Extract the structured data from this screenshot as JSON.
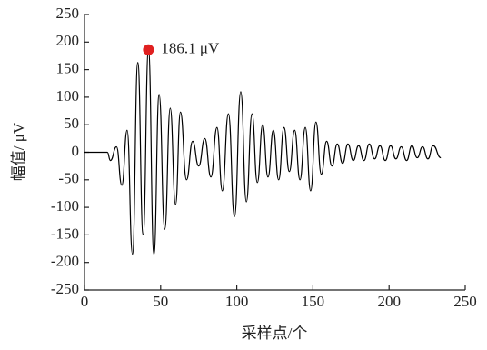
{
  "chart_data": {
    "type": "line",
    "xlabel": "采样点/个",
    "ylabel": "幅值/ μV",
    "x": [
      0,
      15,
      17,
      21,
      24.5,
      28,
      31.5,
      35,
      38.5,
      42,
      45.6,
      49,
      52.7,
      56.3,
      59.8,
      63,
      67,
      71,
      75,
      79,
      83,
      87,
      90.5,
      94.5,
      98.5,
      102.6,
      106.3,
      110,
      113.5,
      117,
      120.5,
      124,
      127.5,
      131,
      134.5,
      138,
      141.5,
      145,
      148.5,
      152,
      155.5,
      159,
      162.5,
      166,
      169.5,
      173,
      176.5,
      180,
      183.5,
      187,
      190.5,
      194,
      197.5,
      201,
      204.5,
      208,
      211.5,
      215,
      218.5,
      222,
      225.5,
      229,
      234
    ],
    "values": [
      0,
      0,
      -15,
      10,
      -60,
      40,
      -185,
      163,
      -150,
      186.1,
      -185,
      105,
      -140,
      80,
      -95,
      73,
      -50,
      20,
      -25,
      25,
      -45,
      45,
      -70,
      70,
      -117,
      110,
      -90,
      70,
      -55,
      50,
      -45,
      40,
      -50,
      45,
      -35,
      40,
      -50,
      45,
      -70,
      55,
      -40,
      20,
      -25,
      15,
      -20,
      15,
      -15,
      12,
      -15,
      15,
      -12,
      12,
      -15,
      12,
      -12,
      10,
      -15,
      12,
      -10,
      10,
      -12,
      12,
      -10
    ],
    "color": "#000000",
    "xlim": [
      0,
      250
    ],
    "xticks": [
      0,
      50,
      100,
      150,
      200,
      250
    ],
    "ylim": [
      -250,
      250
    ],
    "yticks": [
      -250,
      -200,
      -150,
      -100,
      -50,
      0,
      50,
      100,
      150,
      200,
      250
    ],
    "annotation": {
      "x": 42,
      "y": 186.1,
      "label": "186.1 μV",
      "color": "#e02020"
    }
  }
}
